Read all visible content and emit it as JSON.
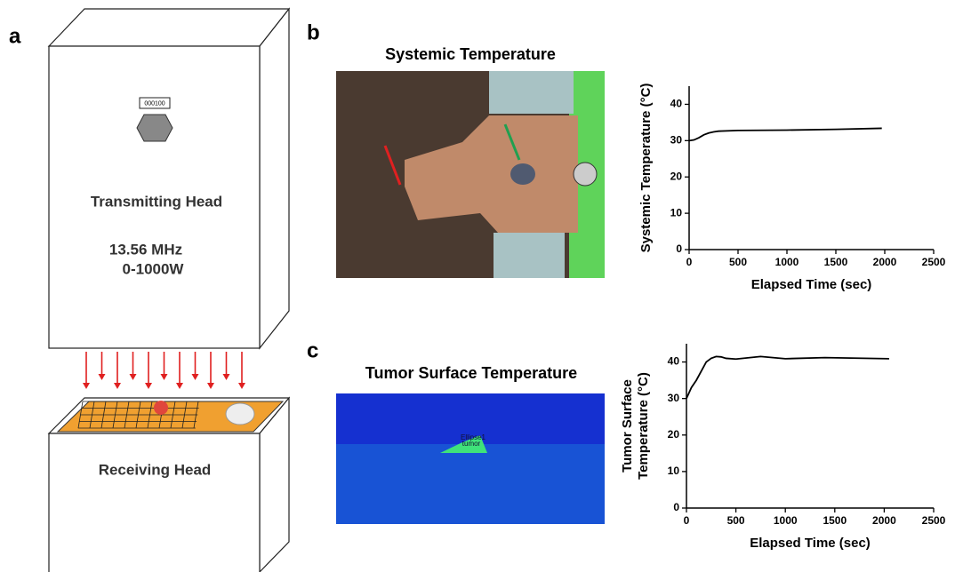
{
  "figure": {
    "panel_labels": [
      "a",
      "b",
      "c"
    ],
    "transmitter": {
      "display": "000100",
      "title": "Transmitting Head",
      "frequency": "13.56 MHz",
      "power": "0-1000W"
    },
    "receiver": {
      "title": "Receiving Head"
    },
    "photo_b": {
      "title": "Systemic Temperature"
    },
    "photo_c": {
      "title": "Tumor Surface Temperature",
      "roi_labels": [
        "Ellipse1",
        "tumor"
      ]
    }
  },
  "chart_data": [
    {
      "type": "line",
      "xlabel": "Elapsed Time (sec)",
      "ylabel_lines": [
        "Systemic Temperature (°C)"
      ],
      "x": [
        0,
        50,
        100,
        150,
        200,
        250,
        300,
        500,
        1000,
        1500,
        1970
      ],
      "series": [
        {
          "color": "#000000",
          "values": [
            30,
            30.2,
            30.8,
            31.6,
            32.1,
            32.4,
            32.6,
            32.8,
            32.9,
            33.1,
            33.4
          ]
        }
      ],
      "xlim": [
        0,
        2500
      ],
      "xticks": [
        0,
        500,
        1000,
        1500,
        2000,
        2500
      ],
      "ylim": [
        0,
        45
      ],
      "yticks": [
        0,
        10,
        20,
        30,
        40
      ]
    },
    {
      "type": "line",
      "xlabel": "Elapsed Time (sec)",
      "ylabel_lines": [
        "Tumor Surface",
        "Temperature (°C)"
      ],
      "x": [
        0,
        50,
        100,
        150,
        200,
        250,
        300,
        350,
        400,
        500,
        750,
        1000,
        1400,
        2050
      ],
      "series": [
        {
          "color": "#000000",
          "values": [
            30,
            33,
            35,
            37.5,
            40,
            41,
            41.5,
            41.4,
            41,
            40.8,
            41.5,
            40.9,
            41.2,
            40.9
          ]
        }
      ],
      "xlim": [
        0,
        2500
      ],
      "xticks": [
        0,
        500,
        1000,
        1500,
        2000,
        2500
      ],
      "ylim": [
        0,
        45
      ],
      "yticks": [
        0,
        10,
        20,
        30,
        40
      ]
    }
  ]
}
